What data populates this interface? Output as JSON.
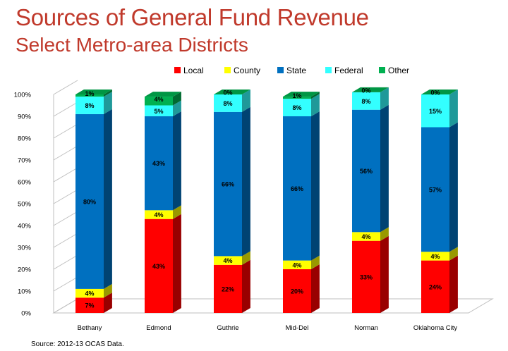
{
  "title": "Sources of General Fund Revenue",
  "subtitle": "Select Metro-area Districts",
  "source": "Source: 2012-13 OCAS Data.",
  "chart_data": {
    "type": "bar",
    "stacked": true,
    "percent": true,
    "three_d": true,
    "categories": [
      "Bethany",
      "Edmond",
      "Guthrie",
      "Mid-Del",
      "Norman",
      "Oklahoma City"
    ],
    "series": [
      {
        "name": "Local",
        "color": "#ff0000",
        "values": [
          7,
          43,
          22,
          20,
          33,
          24
        ],
        "labels": [
          "7%",
          "43%",
          "22%",
          "20%",
          "33%",
          "24%"
        ]
      },
      {
        "name": "County",
        "color": "#ffff00",
        "values": [
          4,
          4,
          4,
          4,
          4,
          4
        ],
        "labels": [
          "4%",
          "4%",
          "4%",
          "4%",
          "4%",
          "4%"
        ]
      },
      {
        "name": "State",
        "color": "#0070c0",
        "values": [
          80,
          43,
          66,
          66,
          56,
          57
        ],
        "labels": [
          "80%",
          "43%",
          "66%",
          "66%",
          "56%",
          "57%"
        ]
      },
      {
        "name": "Federal",
        "color": "#33ffff",
        "values": [
          8,
          5,
          8,
          8,
          8,
          15
        ],
        "labels": [
          "8%",
          "5%",
          "8%",
          "8%",
          "8%",
          "15%"
        ]
      },
      {
        "name": "Other",
        "color": "#00b050",
        "values": [
          1,
          4,
          0,
          1,
          0,
          0
        ],
        "labels": [
          "1%",
          "4%",
          "0%",
          "1%",
          "0%",
          "0%"
        ]
      }
    ],
    "ylim": [
      0,
      100
    ],
    "yticks": [
      "0%",
      "10%",
      "20%",
      "30%",
      "40%",
      "50%",
      "60%",
      "70%",
      "80%",
      "90%",
      "100%"
    ],
    "legend_position": "top",
    "gridlines": false
  }
}
